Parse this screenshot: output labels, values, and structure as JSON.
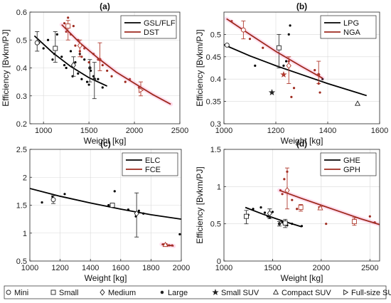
{
  "colors": {
    "black": "#000000",
    "red": "#9e2a1e",
    "errblack": "#333333",
    "errred": "#b03a2e",
    "halo": "#ff80c0"
  },
  "chart_data": [
    {
      "id": "a",
      "type": "scatter",
      "title": "(a)",
      "xlabel": "Weight [kg]",
      "ylabel": "Efficiency [Bvkm/PJ]",
      "xlim": [
        850,
        2500
      ],
      "ylim": [
        0.2,
        0.6
      ],
      "xticks": [
        "1000",
        "1500",
        "2000",
        "2500"
      ],
      "xtick_values": [
        1000,
        1500,
        2000,
        2500
      ],
      "yticks": [
        "0.2",
        "0.3",
        "0.4",
        "0.5",
        "0.6"
      ],
      "ytick_values": [
        0.2,
        0.3,
        0.4,
        0.5,
        0.6
      ],
      "grid": true,
      "legend_position": "top-right",
      "series": [
        {
          "name": "GSL/FLF",
          "color": "black",
          "fit": {
            "x": [
              900,
              1100,
              1300,
              1500,
              1700
            ],
            "y": [
              0.515,
              0.455,
              0.405,
              0.365,
              0.335
            ]
          },
          "points": [
            [
              950,
              0.49
            ],
            [
              1000,
              0.47
            ],
            [
              1050,
              0.5
            ],
            [
              1100,
              0.43
            ],
            [
              1120,
              0.45
            ],
            [
              1150,
              0.52
            ],
            [
              1200,
              0.44
            ],
            [
              1230,
              0.41
            ],
            [
              1250,
              0.4
            ],
            [
              1300,
              0.46
            ],
            [
              1320,
              0.37
            ],
            [
              1350,
              0.42
            ],
            [
              1380,
              0.38
            ],
            [
              1400,
              0.45
            ],
            [
              1420,
              0.36
            ],
            [
              1450,
              0.43
            ],
            [
              1480,
              0.35
            ],
            [
              1500,
              0.34
            ],
            [
              1520,
              0.39
            ],
            [
              1550,
              0.37
            ],
            [
              1600,
              0.36
            ],
            [
              1650,
              0.33
            ]
          ],
          "error_bars": [
            {
              "shape": "mini",
              "x": 930,
              "y": 0.49,
              "lo": 0.46,
              "hi": 0.53
            },
            {
              "shape": "small",
              "x": 1130,
              "y": 0.47,
              "lo": 0.42,
              "hi": 0.53
            },
            {
              "shape": "medium",
              "x": 1330,
              "y": 0.41,
              "lo": 0.37,
              "hi": 0.44
            },
            {
              "shape": "large",
              "x": 1510,
              "y": 0.4,
              "lo": 0.35,
              "hi": 0.43
            },
            {
              "shape": "large",
              "x": 1560,
              "y": 0.36,
              "lo": 0.29,
              "hi": 0.42
            }
          ]
        },
        {
          "name": "DST",
          "color": "red",
          "fit": {
            "x": [
              1200,
              1400,
              1600,
              1800,
              2000,
              2200,
              2400
            ],
            "y": [
              0.555,
              0.49,
              0.435,
              0.385,
              0.345,
              0.305,
              0.27
            ]
          },
          "points": [
            [
              1230,
              0.56
            ],
            [
              1250,
              0.53
            ],
            [
              1270,
              0.58
            ],
            [
              1300,
              0.52
            ],
            [
              1330,
              0.55
            ],
            [
              1350,
              0.48
            ],
            [
              1380,
              0.5
            ],
            [
              1400,
              0.46
            ],
            [
              1420,
              0.44
            ],
            [
              1450,
              0.47
            ],
            [
              1500,
              0.42
            ],
            [
              1550,
              0.45
            ],
            [
              1600,
              0.43
            ],
            [
              1650,
              0.41
            ],
            [
              1700,
              0.39
            ],
            [
              1750,
              0.37
            ],
            [
              1900,
              0.35
            ],
            [
              1950,
              0.36
            ],
            [
              2050,
              0.33
            ]
          ],
          "error_bars": [
            {
              "shape": "small",
              "x": 1270,
              "y": 0.55,
              "lo": 0.5,
              "hi": 0.57
            },
            {
              "shape": "medium",
              "x": 1400,
              "y": 0.48,
              "lo": 0.44,
              "hi": 0.5
            },
            {
              "shape": "large",
              "x": 1620,
              "y": 0.43,
              "lo": 0.39,
              "hi": 0.49
            },
            {
              "shape": "full-size-suv",
              "x": 2070,
              "y": 0.32,
              "lo": 0.3,
              "hi": 0.35
            }
          ]
        }
      ]
    },
    {
      "id": "b",
      "type": "scatter",
      "title": "(b)",
      "xlabel": "Weight [kg]",
      "ylabel": "Efficiency [Bvkm/PJ]",
      "xlim": [
        1000,
        1600
      ],
      "ylim": [
        0.3,
        0.55
      ],
      "xticks": [
        "1000",
        "1200",
        "1400",
        "1600"
      ],
      "xtick_values": [
        1000,
        1200,
        1400,
        1600
      ],
      "yticks": [
        "0.3",
        "0.35",
        "0.4",
        "0.45",
        "0.5"
      ],
      "ytick_values": [
        0.3,
        0.35,
        0.4,
        0.45,
        0.5
      ],
      "grid": true,
      "legend_position": "top-right",
      "series": [
        {
          "name": "LPG",
          "color": "black",
          "fit": {
            "x": [
              1000,
              1100,
              1200,
              1300,
              1400,
              1500,
              1550
            ],
            "y": [
              0.477,
              0.452,
              0.43,
              0.41,
              0.39,
              0.372,
              0.363
            ]
          },
          "points": [
            [
              1012,
              0.475
            ],
            [
              1120,
              0.43
            ],
            [
              1185,
              0.37
            ],
            [
              1215,
              0.47
            ],
            [
              1230,
              0.43
            ],
            [
              1240,
              0.44
            ],
            [
              1250,
              0.5
            ],
            [
              1255,
              0.52
            ],
            [
              1380,
              0.4
            ],
            [
              1515,
              0.345
            ]
          ],
          "error_bars": [
            {
              "shape": "mini",
              "x": 1012,
              "y": 0.476,
              "lo": 0.476,
              "hi": 0.476
            },
            {
              "shape": "small",
              "x": 1212,
              "y": 0.47,
              "lo": 0.425,
              "hi": 0.5
            },
            {
              "shape": "small-suv",
              "x": 1185,
              "y": 0.37,
              "lo": 0.37,
              "hi": 0.37
            },
            {
              "shape": "compact-suv",
              "x": 1515,
              "y": 0.345,
              "lo": 0.345,
              "hi": 0.345
            }
          ]
        },
        {
          "name": "NGA",
          "color": "red",
          "fit": {
            "x": [
              1010,
              1100,
              1200,
              1300,
              1380
            ],
            "y": [
              0.535,
              0.5,
              0.462,
              0.428,
              0.402
            ]
          },
          "points": [
            [
              1030,
              0.53
            ],
            [
              1070,
              0.51
            ],
            [
              1100,
              0.49
            ],
            [
              1150,
              0.47
            ],
            [
              1230,
              0.41
            ],
            [
              1250,
              0.44
            ],
            [
              1260,
              0.36
            ],
            [
              1270,
              0.38
            ],
            [
              1350,
              0.42
            ],
            [
              1365,
              0.39
            ],
            [
              1370,
              0.37
            ]
          ],
          "error_bars": [
            {
              "shape": "mini",
              "x": 1075,
              "y": 0.51,
              "lo": 0.49,
              "hi": 0.53
            },
            {
              "shape": "medium",
              "x": 1250,
              "y": 0.43,
              "lo": 0.39,
              "hi": 0.45
            },
            {
              "shape": "large",
              "x": 1365,
              "y": 0.41,
              "lo": 0.39,
              "hi": 0.44
            },
            {
              "shape": "small-suv",
              "x": 1230,
              "y": 0.41,
              "lo": 0.41,
              "hi": 0.41
            }
          ]
        }
      ]
    },
    {
      "id": "c",
      "type": "scatter",
      "title": "(c)",
      "xlabel": "Weight [kg]",
      "ylabel": "",
      "xlim": [
        1000,
        2000
      ],
      "ylim": [
        0.5,
        2.5
      ],
      "xticks": [
        "1000",
        "1200",
        "1400",
        "1600",
        "1800",
        "2000"
      ],
      "xtick_values": [
        1000,
        1200,
        1400,
        1600,
        1800,
        2000
      ],
      "yticks": [
        "0.5",
        "1",
        "1.5",
        "2",
        "2.5"
      ],
      "ytick_values": [
        0.5,
        1,
        1.5,
        2,
        2.5
      ],
      "grid": true,
      "legend_position": "top-right",
      "series": [
        {
          "name": "ELC",
          "color": "black",
          "fit": {
            "x": [
              1000,
              1200,
              1400,
              1600,
              1800,
              2000
            ],
            "y": [
              1.8,
              1.66,
              1.54,
              1.43,
              1.33,
              1.25
            ]
          },
          "points": [
            [
              1080,
              1.55
            ],
            [
              1150,
              1.65
            ],
            [
              1230,
              1.7
            ],
            [
              1520,
              1.5
            ],
            [
              1560,
              1.75
            ],
            [
              1650,
              1.42
            ],
            [
              1700,
              1.3
            ],
            [
              1720,
              1.4
            ],
            [
              1750,
              1.35
            ],
            [
              1990,
              0.98
            ]
          ],
          "error_bars": [
            {
              "shape": "mini",
              "x": 1155,
              "y": 1.6,
              "lo": 1.53,
              "hi": 1.67
            },
            {
              "shape": "small",
              "x": 1545,
              "y": 1.5,
              "lo": 1.47,
              "hi": 1.53
            },
            {
              "shape": "medium",
              "x": 1705,
              "y": 1.35,
              "lo": 0.93,
              "hi": 1.72
            }
          ]
        },
        {
          "name": "FCE",
          "color": "red",
          "fit": {
            "x": [
              1870,
              1950
            ],
            "y": [
              0.8,
              0.77
            ]
          },
          "points": [
            [
              1880,
              0.8
            ],
            [
              1900,
              0.8
            ],
            [
              1920,
              0.78
            ],
            [
              1940,
              0.78
            ]
          ],
          "error_bars": [
            {
              "shape": "compact-suv",
              "x": 1895,
              "y": 0.79,
              "lo": 0.77,
              "hi": 0.81
            }
          ]
        }
      ]
    },
    {
      "id": "d",
      "type": "scatter",
      "title": "(d)",
      "xlabel": "Weight [kg]",
      "ylabel": "Efficiency [Bvkm/PJ]",
      "xlim": [
        1000,
        2600
      ],
      "ylim": [
        0,
        1.5
      ],
      "xticks": [
        "1000",
        "1500",
        "2000",
        "2500"
      ],
      "xtick_values": [
        1000,
        1500,
        2000,
        2500
      ],
      "yticks": [
        "0",
        "0.5",
        "1",
        "1.5"
      ],
      "ytick_values": [
        0,
        0.5,
        1,
        1.5
      ],
      "grid": true,
      "legend_position": "top-right",
      "series": [
        {
          "name": "GHE",
          "color": "black",
          "fit": {
            "x": [
              1220,
              1400,
              1600,
              1800
            ],
            "y": [
              0.72,
              0.63,
              0.54,
              0.46
            ]
          },
          "points": [
            [
              1250,
              0.62
            ],
            [
              1300,
              0.7
            ],
            [
              1380,
              0.72
            ],
            [
              1420,
              0.65
            ],
            [
              1450,
              0.6
            ],
            [
              1470,
              0.58
            ],
            [
              1500,
              0.66
            ],
            [
              1600,
              0.52
            ],
            [
              1650,
              0.48
            ],
            [
              1700,
              0.5
            ],
            [
              1800,
              0.47
            ]
          ],
          "error_bars": [
            {
              "shape": "small",
              "x": 1230,
              "y": 0.6,
              "lo": 0.5,
              "hi": 0.68
            },
            {
              "shape": "medium",
              "x": 1470,
              "y": 0.64,
              "lo": 0.57,
              "hi": 0.7
            },
            {
              "shape": "small",
              "x": 1630,
              "y": 0.51,
              "lo": 0.45,
              "hi": 0.56
            },
            {
              "shape": "large",
              "x": 1570,
              "y": 0.5,
              "lo": 0.47,
              "hi": 0.53
            }
          ]
        },
        {
          "name": "GPH",
          "color": "red",
          "fit": {
            "x": [
              1570,
              1800,
              2000,
              2200,
              2400,
              2600
            ],
            "y": [
              0.95,
              0.84,
              0.75,
              0.66,
              0.57,
              0.49
            ]
          },
          "points": [
            [
              1580,
              0.95
            ],
            [
              1600,
              0.9
            ],
            [
              1620,
              1.1
            ],
            [
              1650,
              1.2
            ],
            [
              1700,
              0.82
            ],
            [
              1750,
              0.7
            ],
            [
              1800,
              0.72
            ],
            [
              1980,
              0.72
            ],
            [
              2000,
              0.7
            ],
            [
              2050,
              0.5
            ],
            [
              2350,
              0.55
            ],
            [
              2500,
              0.6
            ],
            [
              2550,
              0.52
            ]
          ],
          "error_bars": [
            {
              "shape": "medium",
              "x": 1650,
              "y": 0.95,
              "lo": 0.7,
              "hi": 1.25
            },
            {
              "shape": "small",
              "x": 1790,
              "y": 0.72,
              "lo": 0.67,
              "hi": 0.76
            },
            {
              "shape": "compact-suv",
              "x": 1990,
              "y": 0.71,
              "lo": 0.69,
              "hi": 0.73
            },
            {
              "shape": "small",
              "x": 2340,
              "y": 0.53,
              "lo": 0.48,
              "hi": 0.58
            }
          ]
        }
      ]
    }
  ],
  "shape_legend": {
    "items": [
      {
        "shape": "mini",
        "label": "Mini"
      },
      {
        "shape": "small",
        "label": "Small"
      },
      {
        "shape": "medium",
        "label": "Medium"
      },
      {
        "shape": "large",
        "label": "Large"
      },
      {
        "shape": "small-suv",
        "label": "Small SUV"
      },
      {
        "shape": "compact-suv",
        "label": "Compact SUV"
      },
      {
        "shape": "full-size-suv",
        "label": "Full-size SUV"
      }
    ]
  }
}
